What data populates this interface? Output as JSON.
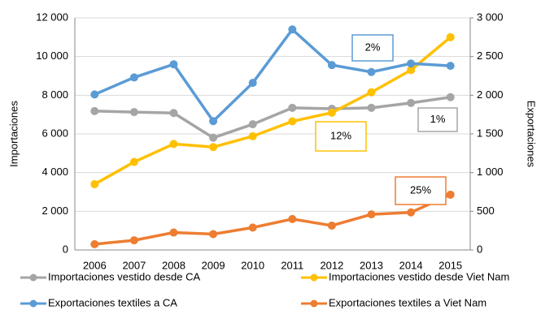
{
  "chart_data": {
    "type": "line",
    "categories": [
      "2006",
      "2007",
      "2008",
      "2009",
      "2010",
      "2011",
      "2012",
      "2013",
      "2014",
      "2015"
    ],
    "ylabel": "Importaciones",
    "y2label": "Exportaciones",
    "ylim": [
      0,
      12000
    ],
    "yticks": [
      0,
      {
        "value": 2000,
        "label": "2 000"
      },
      {
        "value": 4000,
        "label": "4 000"
      },
      {
        "value": 6000,
        "label": "6 000"
      },
      {
        "value": 8000,
        "label": "8 000"
      },
      {
        "value": 10000,
        "label": "10 000"
      },
      {
        "value": 12000,
        "label": "12 000"
      }
    ],
    "y2lim": [
      0,
      3000
    ],
    "y2ticks": [
      0,
      500,
      {
        "value": 1000,
        "label": "1 000"
      },
      {
        "value": 1500,
        "label": "1 500"
      },
      {
        "value": 2000,
        "label": "2 000"
      },
      {
        "value": 2500,
        "label": "2 500"
      },
      {
        "value": 3000,
        "label": "3 000"
      }
    ],
    "grid": true,
    "series": [
      {
        "name": "Importaciones vestido desde CA",
        "color": "#a5a5a5",
        "values": [
          7180,
          7130,
          7080,
          5800,
          6500,
          7350,
          7300,
          7350,
          7600,
          7900
        ]
      },
      {
        "name": "Importaciones vestido desde Viet Nam",
        "color": "#ffc000",
        "values": [
          3400,
          4550,
          5480,
          5320,
          5880,
          6650,
          7100,
          8150,
          9300,
          11000
        ]
      },
      {
        "name": "Exportaciones textiles a CA",
        "color": "#5b9bd5",
        "axis": "y2",
        "values": [
          2010,
          2230,
          2400,
          1665,
          2160,
          2850,
          2390,
          2300,
          2410,
          2380
        ]
      },
      {
        "name": "Exportaciones textiles a Viet Nam",
        "color": "#ed7d31",
        "axis": "y2",
        "values": [
          75,
          125,
          225,
          205,
          290,
          400,
          315,
          460,
          485,
          715
        ]
      }
    ],
    "annotations": [
      {
        "text": "2%",
        "color": "#5b9bd5"
      },
      {
        "text": "1%",
        "color": "#a5a5a5"
      },
      {
        "text": "12%",
        "color": "#ffc000"
      },
      {
        "text": "25%",
        "color": "#ed7d31"
      }
    ]
  }
}
